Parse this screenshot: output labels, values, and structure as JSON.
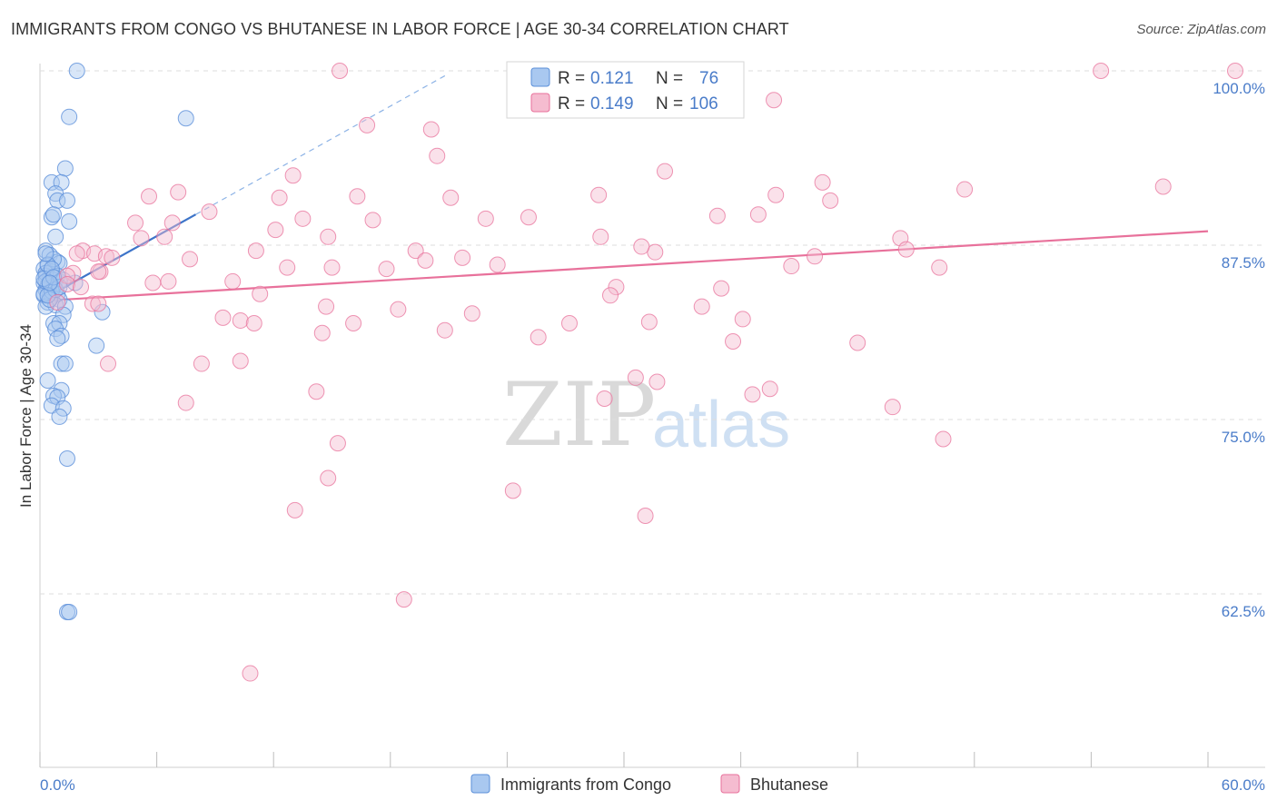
{
  "title": "IMMIGRANTS FROM CONGO VS BHUTANESE IN LABOR FORCE | AGE 30-34 CORRELATION CHART",
  "source": "Source: ZipAtlas.com",
  "watermark": {
    "zip": "ZIP",
    "atlas": "atlas"
  },
  "colors": {
    "congo": "#5b8fd9",
    "congo_fill": "#a9c8f0",
    "bhutanese": "#e8719b",
    "bhutanese_fill": "#f5bcd0",
    "tick_text": "#4a7cc9"
  },
  "chart_data": {
    "type": "scatter",
    "xlabel": "",
    "ylabel": "In Labor Force | Age 30-34",
    "xlim": [
      0,
      60
    ],
    "ylim": [
      50,
      100
    ],
    "x_tick_labels": {
      "min": "0.0%",
      "max": "60.0%"
    },
    "y_ticks": [
      {
        "value": 62.5,
        "label": "62.5%"
      },
      {
        "value": 75.0,
        "label": "75.0%"
      },
      {
        "value": 87.5,
        "label": "87.5%"
      },
      {
        "value": 100.0,
        "label": "100.0%"
      }
    ],
    "legend": [
      {
        "series": "Immigrants from Congo",
        "r_label": "R =",
        "r": "0.121",
        "n_label": "N =",
        "n": "76"
      },
      {
        "series": "Bhutanese",
        "r_label": "R =",
        "r": "0.149",
        "n_label": "N =",
        "n": "106"
      }
    ],
    "series": [
      {
        "name": "Immigrants from Congo",
        "trend": {
          "x": [
            0.0,
            8.0
          ],
          "y": [
            83.5,
            89.7
          ]
        },
        "trend_extension": {
          "x": [
            8.0,
            21.0
          ],
          "y": [
            89.7,
            99.8
          ]
        },
        "points": [
          [
            1.9,
            100.0
          ],
          [
            1.5,
            96.7
          ],
          [
            7.5,
            96.6
          ],
          [
            1.3,
            93.0
          ],
          [
            0.6,
            92.0
          ],
          [
            1.1,
            92.0
          ],
          [
            0.8,
            91.2
          ],
          [
            0.9,
            90.7
          ],
          [
            1.4,
            90.7
          ],
          [
            0.6,
            89.5
          ],
          [
            0.7,
            89.7
          ],
          [
            1.5,
            89.2
          ],
          [
            0.8,
            88.1
          ],
          [
            0.3,
            87.1
          ],
          [
            0.5,
            86.8
          ],
          [
            0.9,
            86.3
          ],
          [
            1.0,
            86.2
          ],
          [
            0.4,
            86.0
          ],
          [
            0.2,
            85.8
          ],
          [
            0.6,
            85.6
          ],
          [
            0.3,
            85.3
          ],
          [
            0.5,
            85.2
          ],
          [
            0.8,
            85.0
          ],
          [
            1.0,
            84.9
          ],
          [
            0.2,
            84.8
          ],
          [
            0.4,
            84.6
          ],
          [
            0.7,
            84.5
          ],
          [
            1.8,
            84.8
          ],
          [
            0.3,
            84.3
          ],
          [
            0.5,
            84.1
          ],
          [
            0.9,
            84.0
          ],
          [
            0.2,
            83.9
          ],
          [
            0.6,
            83.8
          ],
          [
            1.0,
            83.6
          ],
          [
            0.4,
            83.4
          ],
          [
            0.8,
            83.2
          ],
          [
            0.3,
            83.1
          ],
          [
            1.3,
            83.1
          ],
          [
            3.2,
            82.7
          ],
          [
            1.2,
            82.5
          ],
          [
            0.7,
            81.9
          ],
          [
            1.0,
            81.9
          ],
          [
            0.8,
            81.5
          ],
          [
            1.1,
            81.0
          ],
          [
            0.9,
            80.8
          ],
          [
            2.9,
            80.3
          ],
          [
            1.1,
            79.0
          ],
          [
            1.3,
            79.0
          ],
          [
            0.4,
            77.8
          ],
          [
            1.1,
            77.1
          ],
          [
            0.7,
            76.7
          ],
          [
            0.9,
            76.6
          ],
          [
            0.6,
            76.0
          ],
          [
            1.2,
            75.8
          ],
          [
            1.0,
            75.2
          ],
          [
            1.4,
            72.2
          ],
          [
            1.4,
            61.2
          ],
          [
            1.5,
            61.2
          ],
          [
            0.5,
            84.7
          ],
          [
            0.3,
            85.5
          ],
          [
            0.7,
            86.5
          ],
          [
            0.2,
            84.0
          ],
          [
            0.9,
            85.3
          ],
          [
            0.4,
            86.1
          ],
          [
            0.6,
            84.2
          ],
          [
            0.5,
            83.6
          ],
          [
            1.2,
            85.0
          ],
          [
            0.3,
            84.9
          ],
          [
            0.8,
            84.3
          ],
          [
            0.2,
            85.1
          ],
          [
            0.6,
            85.8
          ],
          [
            1.0,
            84.5
          ],
          [
            0.4,
            83.9
          ],
          [
            0.7,
            85.2
          ],
          [
            0.5,
            84.8
          ],
          [
            0.3,
            86.9
          ]
        ]
      },
      {
        "name": "Bhutanese",
        "trend": {
          "x": [
            0.0,
            60.0
          ],
          "y": [
            83.5,
            88.5
          ]
        },
        "points": [
          [
            15.4,
            100.0
          ],
          [
            54.5,
            100.0
          ],
          [
            61.4,
            100.0
          ],
          [
            37.7,
            97.9
          ],
          [
            16.8,
            96.1
          ],
          [
            20.1,
            95.8
          ],
          [
            20.4,
            93.9
          ],
          [
            32.1,
            92.8
          ],
          [
            13.0,
            92.5
          ],
          [
            40.2,
            92.0
          ],
          [
            28.7,
            91.1
          ],
          [
            37.8,
            91.1
          ],
          [
            40.6,
            90.7
          ],
          [
            47.5,
            91.5
          ],
          [
            57.7,
            91.7
          ],
          [
            16.3,
            91.0
          ],
          [
            21.1,
            90.9
          ],
          [
            12.3,
            90.9
          ],
          [
            5.6,
            91.0
          ],
          [
            7.1,
            91.3
          ],
          [
            8.7,
            89.9
          ],
          [
            34.8,
            89.6
          ],
          [
            36.9,
            89.7
          ],
          [
            13.5,
            89.4
          ],
          [
            17.1,
            89.3
          ],
          [
            22.9,
            89.4
          ],
          [
            25.1,
            89.5
          ],
          [
            4.9,
            89.1
          ],
          [
            6.8,
            89.1
          ],
          [
            12.1,
            88.6
          ],
          [
            14.8,
            88.1
          ],
          [
            28.8,
            88.1
          ],
          [
            44.2,
            88.0
          ],
          [
            5.2,
            88.0
          ],
          [
            6.4,
            88.1
          ],
          [
            11.1,
            87.1
          ],
          [
            19.3,
            87.1
          ],
          [
            21.7,
            86.6
          ],
          [
            2.2,
            87.1
          ],
          [
            1.9,
            86.9
          ],
          [
            2.8,
            86.9
          ],
          [
            3.4,
            86.7
          ],
          [
            3.7,
            86.6
          ],
          [
            7.7,
            86.5
          ],
          [
            19.8,
            86.4
          ],
          [
            23.5,
            86.1
          ],
          [
            38.6,
            86.0
          ],
          [
            46.2,
            85.9
          ],
          [
            12.7,
            85.9
          ],
          [
            15.0,
            85.9
          ],
          [
            17.8,
            85.8
          ],
          [
            3.1,
            85.6
          ],
          [
            1.7,
            85.5
          ],
          [
            1.4,
            85.3
          ],
          [
            5.8,
            84.8
          ],
          [
            9.9,
            84.9
          ],
          [
            6.6,
            84.9
          ],
          [
            29.6,
            84.5
          ],
          [
            35.0,
            84.4
          ],
          [
            11.3,
            84.0
          ],
          [
            29.3,
            83.9
          ],
          [
            2.7,
            83.3
          ],
          [
            3.0,
            83.3
          ],
          [
            0.9,
            83.4
          ],
          [
            18.4,
            82.9
          ],
          [
            14.7,
            83.1
          ],
          [
            22.2,
            82.6
          ],
          [
            34.0,
            83.1
          ],
          [
            9.4,
            82.3
          ],
          [
            10.3,
            82.1
          ],
          [
            11.0,
            81.9
          ],
          [
            16.1,
            81.9
          ],
          [
            27.2,
            81.9
          ],
          [
            31.3,
            82.0
          ],
          [
            36.1,
            82.2
          ],
          [
            20.8,
            81.4
          ],
          [
            14.5,
            81.2
          ],
          [
            25.6,
            80.9
          ],
          [
            35.6,
            80.6
          ],
          [
            42.0,
            80.5
          ],
          [
            3.5,
            79.0
          ],
          [
            8.3,
            79.0
          ],
          [
            10.3,
            79.2
          ],
          [
            30.6,
            78.0
          ],
          [
            31.7,
            77.7
          ],
          [
            37.5,
            77.2
          ],
          [
            14.2,
            77.0
          ],
          [
            29.0,
            76.5
          ],
          [
            36.6,
            76.8
          ],
          [
            7.5,
            76.2
          ],
          [
            43.8,
            75.9
          ],
          [
            46.4,
            73.6
          ],
          [
            15.3,
            73.3
          ],
          [
            14.8,
            70.8
          ],
          [
            24.3,
            69.9
          ],
          [
            13.1,
            68.5
          ],
          [
            31.1,
            68.1
          ],
          [
            18.7,
            62.1
          ],
          [
            10.8,
            56.8
          ],
          [
            31.6,
            87.0
          ],
          [
            30.9,
            87.4
          ],
          [
            39.8,
            86.7
          ],
          [
            44.5,
            87.2
          ],
          [
            3.0,
            85.6
          ],
          [
            1.4,
            84.7
          ],
          [
            2.1,
            84.5
          ]
        ]
      }
    ]
  },
  "bottom_legend": [
    {
      "label": "Immigrants from Congo"
    },
    {
      "label": "Bhutanese"
    }
  ]
}
